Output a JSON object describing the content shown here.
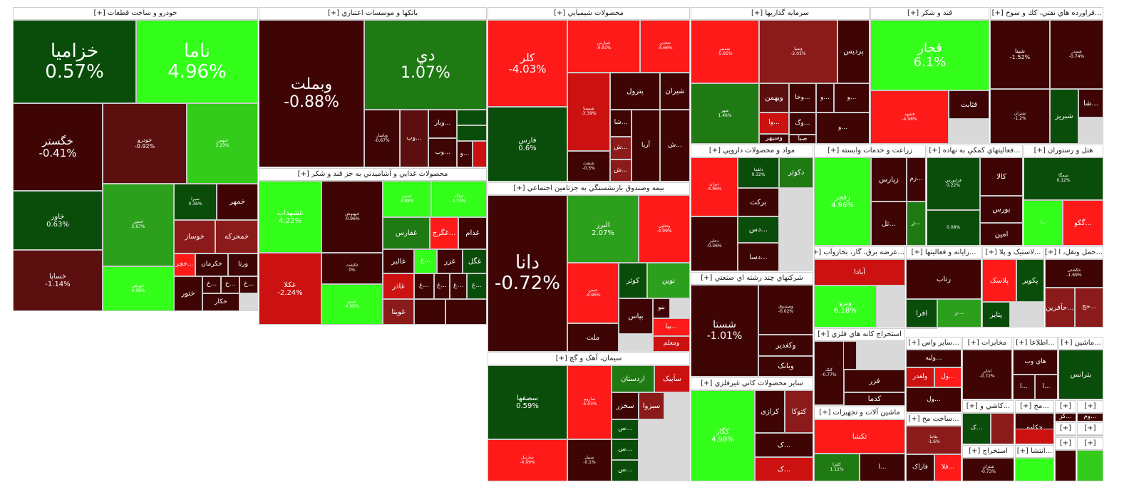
{
  "palette": {
    "r3": "#ff1a1a",
    "r2": "#cc1111",
    "r1": "#8b1a1a",
    "r0": "#5c0f0f",
    "z": "#3f0505",
    "g0": "#0a4d0a",
    "g1": "#1f7a14",
    "g2": "#2ca01c",
    "g3": "#33cc1a",
    "g4": "#33ff1a"
  },
  "sectors": [
    {
      "title": "خودرو و ساخت قطعات [+]",
      "tiles": [
        {
          "s": "خزامیا",
          "p": "0.57%",
          "c": "g0"
        },
        {
          "s": "ناما",
          "p": "4.96%",
          "c": "g4"
        },
        {
          "s": "خگستر",
          "p": "-0.41%",
          "c": "z"
        },
        {
          "s": "خودرو",
          "p": "-0.92%",
          "c": "r0"
        },
        {
          "s": "خبهمن",
          "p": "3.23%",
          "c": "g3"
        },
        {
          "s": "خاور",
          "p": "0.63%",
          "c": "g0"
        },
        {
          "s": "خساپا",
          "p": "-1.14%",
          "c": "r0"
        },
        {
          "s": "ختمپر",
          "p": "2.67%",
          "c": "g2"
        },
        {
          "s": "خلنت",
          "p": "-4.98%",
          "c": "r3"
        },
        {
          "s": "خپویش",
          "p": "4.98%",
          "c": "g4"
        },
        {
          "s": "سیرا",
          "p": "0.36%",
          "c": "g0"
        },
        {
          "s": "خمهر",
          "p": "",
          "c": "z"
        },
        {
          "s": "خوساز",
          "p": "",
          "c": "r1"
        },
        {
          "s": "خمحرکه",
          "p": "",
          "c": "r1"
        },
        {
          "s": "...خچر",
          "p": "",
          "c": "r3"
        },
        {
          "s": "خکرمان",
          "p": "",
          "c": "z"
        },
        {
          "s": "ورنا",
          "p": "",
          "c": "z"
        },
        {
          "s": "ختور",
          "p": "",
          "c": "z"
        },
        {
          "s": "...خ",
          "p": "",
          "c": "z"
        },
        {
          "s": "...خ",
          "p": "",
          "c": "z"
        },
        {
          "s": "...خ",
          "p": "",
          "c": "z"
        },
        {
          "s": "خکار",
          "p": "",
          "c": "z"
        }
      ]
    },
    {
      "title": "بانکها و موسسات اعتباري [+]",
      "tiles": [
        {
          "s": "وبملت",
          "p": "-0.88%",
          "c": "z"
        },
        {
          "s": "دي",
          "p": "1.07%",
          "c": "g1"
        },
        {
          "s": "وپاسار",
          "p": "-0.67%",
          "c": "z"
        },
        {
          "s": "...وب",
          "p": "",
          "c": "r0"
        },
        {
          "s": "...وبار",
          "p": "",
          "c": "z"
        },
        {
          "s": "",
          "p": "",
          "c": "g0"
        },
        {
          "s": "",
          "p": "",
          "c": "g0"
        },
        {
          "s": "...وب",
          "p": "",
          "c": "z"
        },
        {
          "s": "...و",
          "p": "",
          "c": "z"
        },
        {
          "s": "",
          "p": "",
          "c": "r2"
        }
      ]
    },
    {
      "title": "محصولات غذايي و آشاميدني به جز قند و شکر [+]",
      "tiles": [
        {
          "s": "غشهداب",
          "p": "4.22%",
          "c": "g4"
        },
        {
          "s": "غبهنوش",
          "p": "-0.96%",
          "c": "z"
        },
        {
          "s": "غمینو",
          "p": "3.88%",
          "c": "g4"
        },
        {
          "s": "غپاک",
          "p": "4.73%",
          "c": "g4"
        },
        {
          "s": "عکلا",
          "p": "-2.24%",
          "c": "r2"
        },
        {
          "s": "غکشت",
          "p": "0%",
          "c": "z"
        },
        {
          "s": "غفارس",
          "p": "",
          "c": "g1"
        },
        {
          "s": "...غگرج",
          "p": "",
          "c": "r3"
        },
        {
          "s": "غدام",
          "p": "",
          "c": "z"
        },
        {
          "s": "غپینو",
          "p": "4.99%",
          "c": "g4"
        },
        {
          "s": "غالبر",
          "p": "",
          "c": "z"
        },
        {
          "s": "...غ",
          "p": "",
          "c": "g4"
        },
        {
          "s": "غزر",
          "p": "",
          "c": "z"
        },
        {
          "s": "غگل",
          "p": "",
          "c": "g0"
        },
        {
          "s": "غاذر",
          "p": "",
          "c": "r2"
        },
        {
          "s": "...غ",
          "p": "",
          "c": "z"
        },
        {
          "s": "...غ",
          "p": "",
          "c": "z"
        },
        {
          "s": "...غ",
          "p": "",
          "c": "z"
        },
        {
          "s": "...غ",
          "p": "",
          "c": "g0"
        },
        {
          "s": "غویتا",
          "p": "",
          "c": "r1"
        },
        {
          "s": "",
          "p": "",
          "c": "z"
        },
        {
          "s": "",
          "p": "",
          "c": "z"
        }
      ]
    },
    {
      "title": "محصولات شيميايي [+]",
      "tiles": [
        {
          "s": "کلر",
          "p": "-4.03%",
          "c": "r3"
        },
        {
          "s": "شپارس",
          "p": "-4.91%",
          "c": "r3"
        },
        {
          "s": "شغدیر",
          "p": "-4.66%",
          "c": "r3"
        },
        {
          "s": "فارس",
          "p": "0.6%",
          "c": "g0"
        },
        {
          "s": "شسینا",
          "p": "-3.39%",
          "c": "r2"
        },
        {
          "s": "پترول",
          "p": "",
          "c": "z"
        },
        {
          "s": "شیران",
          "p": "",
          "c": "z"
        },
        {
          "s": "...شا",
          "p": "",
          "c": "z"
        },
        {
          "s": "شنفت",
          "p": "-0.3%",
          "c": "z"
        },
        {
          "s": "...ش",
          "p": "",
          "c": "r1"
        },
        {
          "s": "...ش",
          "p": "",
          "c": "r1"
        },
        {
          "s": "آریا",
          "p": "",
          "c": "z"
        },
        {
          "s": "...ش",
          "p": "",
          "c": "z"
        }
      ]
    },
    {
      "title": "بيمه وصندوق بازنشستگي به جزتامين اجتماعي [+]",
      "tiles": [
        {
          "s": "دانا",
          "p": "-0.72%",
          "c": "z"
        },
        {
          "s": "البرز",
          "p": "2.07%",
          "c": "g2"
        },
        {
          "s": "وتعاون",
          "p": "-4.99%",
          "c": "r3"
        },
        {
          "s": "حپمن",
          "p": "-4.96%",
          "c": "r3"
        },
        {
          "s": "کوثر",
          "p": "",
          "c": "g0"
        },
        {
          "s": "نوین",
          "p": "",
          "c": "g2"
        },
        {
          "s": "بپاس",
          "p": "",
          "c": "z"
        },
        {
          "s": "بنو",
          "p": "",
          "c": "z"
        },
        {
          "s": "ملت",
          "p": "",
          "c": "z"
        },
        {
          "s": "...بیا",
          "p": "",
          "c": "r3"
        },
        {
          "s": "ومعلم",
          "p": "",
          "c": "r2"
        }
      ]
    },
    {
      "title": "سيمان، آهک و گچ [+]",
      "tiles": [
        {
          "s": "سصفها",
          "p": "0.59%",
          "c": "g0"
        },
        {
          "s": "ساروم",
          "p": "-5.03%",
          "c": "r3"
        },
        {
          "s": "ساربیل",
          "p": "-4.99%",
          "c": "r3"
        },
        {
          "s": "سبیل",
          "p": "-0.1%",
          "c": "z"
        },
        {
          "s": "اردستان",
          "p": "",
          "c": "g1"
        },
        {
          "s": "سآبیک",
          "p": "",
          "c": "r2"
        },
        {
          "s": "سخزر",
          "p": "",
          "c": "z"
        },
        {
          "s": "سبزوا",
          "p": "",
          "c": "r1"
        },
        {
          "s": "...س",
          "p": "",
          "c": "g0"
        },
        {
          "s": "...س",
          "p": "",
          "c": "g0"
        },
        {
          "s": "...س",
          "p": "",
          "c": "g0"
        }
      ]
    },
    {
      "title": "سرمايه گذاريها [+]",
      "tiles": [
        {
          "s": "سدبیر",
          "p": "-5.85%",
          "c": "r3"
        },
        {
          "s": "وسپا",
          "p": "-2.01%",
          "c": "r1"
        },
        {
          "s": "پردیس",
          "p": "",
          "c": "z"
        },
        {
          "s": "شهر",
          "p": "1.46%",
          "c": "g1"
        },
        {
          "s": "وبهمن",
          "p": "",
          "c": "r0"
        },
        {
          "s": "...وخا",
          "p": "",
          "c": "z"
        },
        {
          "s": "...و",
          "p": "",
          "c": "z"
        },
        {
          "s": "...و",
          "p": "",
          "c": "z"
        },
        {
          "s": "...وگ",
          "p": "",
          "c": "z"
        },
        {
          "s": "...وا",
          "p": "",
          "c": "r2"
        },
        {
          "s": "وسپهر",
          "p": "",
          "c": "z"
        },
        {
          "s": "صبا",
          "p": "",
          "c": "z"
        },
        {
          "s": "...و",
          "p": "",
          "c": "z"
        }
      ]
    },
    {
      "title": "قند و شکر [+]",
      "tiles": [
        {
          "s": "قجار",
          "p": "6.1%",
          "c": "g4"
        },
        {
          "s": "قشهد",
          "p": "-4.98%",
          "c": "r3"
        },
        {
          "s": "قثابت",
          "p": "",
          "c": "z"
        }
      ]
    },
    {
      "title": "...فراورده هاي نفتي، كك و سوخ [+]",
      "tiles": [
        {
          "s": "شپنا",
          "p": "-1.52%",
          "c": "z"
        },
        {
          "s": "شبندر",
          "p": "-0.74%",
          "c": "z"
        },
        {
          "s": "شتران",
          "p": "-1.2%",
          "c": "z"
        },
        {
          "s": "شبریز",
          "p": "",
          "c": "g0"
        },
        {
          "s": "...شا",
          "p": "",
          "c": "z"
        }
      ]
    },
    {
      "title": "مواد و محصولات دارويي [+]",
      "tiles": [
        {
          "s": "دیران",
          "p": "-4.96%",
          "c": "r3"
        },
        {
          "s": "دلقما",
          "p": "0.32%",
          "c": "g0"
        },
        {
          "s": "دکوثر",
          "p": "",
          "c": "g1"
        },
        {
          "s": "برکت",
          "p": "",
          "c": "z"
        },
        {
          "s": "...دس",
          "p": "",
          "c": "g0"
        },
        {
          "s": "دجابر",
          "p": "-0.36%",
          "c": "z"
        },
        {
          "s": "...دسا",
          "p": "",
          "c": "z"
        }
      ]
    },
    {
      "title": "شرکتهاي چند رشته اي صنعتي [+]",
      "tiles": [
        {
          "s": "شستا",
          "p": "-1.01%",
          "c": "z"
        },
        {
          "s": "وصندوق",
          "p": "-0.02%",
          "c": "z"
        },
        {
          "s": "وکغدیر",
          "p": "",
          "c": "z"
        },
        {
          "s": "وبانک",
          "p": "",
          "c": "z"
        }
      ]
    },
    {
      "title": "ساير محصولات کاني غيرفلزي [+]",
      "tiles": [
        {
          "s": "کگاز",
          "p": "4.98%",
          "c": "g4"
        },
        {
          "s": "کرازی",
          "p": "",
          "c": "z"
        },
        {
          "s": "کتوکا",
          "p": "",
          "c": "r1"
        },
        {
          "s": "...ک",
          "p": "",
          "c": "z"
        },
        {
          "s": "...ک",
          "p": "",
          "c": "r2"
        }
      ]
    },
    {
      "title": "زراعت و خدمات وابسته [+]",
      "tiles": [
        {
          "s": "زفجر",
          "p": "4.96%",
          "c": "g4"
        },
        {
          "s": "زپارس",
          "p": "",
          "c": "z"
        },
        {
          "s": "...زم",
          "p": "",
          "c": "z"
        },
        {
          "s": "...تل",
          "p": "",
          "c": "z"
        },
        {
          "s": "...ز",
          "p": "",
          "c": "g1"
        }
      ]
    },
    {
      "title": "...فعاليتهاي کمکي به نهاده [+]",
      "tiles": [
        {
          "s": "فرابورس",
          "p": "0.22%",
          "c": "g0"
        },
        {
          "s": "کالا",
          "p": "",
          "c": "z"
        },
        {
          "s": "بورس",
          "p": "",
          "c": "z"
        },
        {
          "s": "امین",
          "p": "",
          "c": "z"
        },
        {
          "s": "",
          "p": "0.08%",
          "c": "g0"
        }
      ]
    },
    {
      "title": "هتل و رستوران [+]",
      "tiles": [
        {
          "s": "سمگا",
          "p": "0.12%",
          "c": "g0"
        },
        {
          "s": "...گکو",
          "p": "",
          "c": "r3"
        },
        {
          "s": "...ا",
          "p": "",
          "c": "g4"
        }
      ]
    },
    {
      "title": "...عرضه برق، گاز، بخاروآب [+]",
      "tiles": [
        {
          "s": "آبادا",
          "p": "",
          "c": "r2"
        },
        {
          "s": "وبرو",
          "p": "6.18%",
          "c": "g4"
        }
      ]
    },
    {
      "title": "...رايانه و فعاليتها [+]",
      "tiles": [
        {
          "s": "رتاب",
          "p": "",
          "c": "z"
        },
        {
          "s": "افرا",
          "p": "",
          "c": "g0"
        },
        {
          "s": "...ر",
          "p": "",
          "c": "g2"
        },
        {
          "s": "...پی",
          "p": "",
          "c": "z"
        }
      ]
    },
    {
      "title": "...لاستيک و پلا [+]",
      "tiles": [
        {
          "s": "پلاسک",
          "p": "",
          "c": "r3"
        },
        {
          "s": "پکویر",
          "p": "",
          "c": "g0"
        },
        {
          "s": "پتایر",
          "p": "",
          "c": "g0"
        }
      ]
    },
    {
      "title": "...حمل ونقل، ا [+]",
      "tiles": [
        {
          "s": "حکشتی",
          "p": "-1.69%",
          "c": "z"
        },
        {
          "s": "...حآفرین",
          "p": "",
          "c": "r1"
        },
        {
          "s": "...حج",
          "p": "",
          "c": "r1"
        }
      ]
    },
    {
      "title": "استخراج کانه هاي فلزي [+]",
      "tiles": [
        {
          "s": "کچاد",
          "p": "",
          "c": "z"
        },
        {
          "s": "فزر",
          "p": "",
          "c": "z"
        },
        {
          "s": "کدما",
          "p": "",
          "c": "z"
        },
        {
          "s": "کنک",
          "p": "-0.77%",
          "c": "z"
        }
      ]
    },
    {
      "title": "ماشين آلات و تجهيزات [+]",
      "tiles": [
        {
          "s": "تکشا",
          "p": "",
          "c": "r3"
        },
        {
          "s": "کلیزا",
          "p": "1.12%",
          "c": "g1"
        },
        {
          "s": "...ا",
          "p": "",
          "c": "z"
        }
      ]
    },
    {
      "title": "...ساير واس [+]",
      "tiles": [
        {
          "s": "...ولیه",
          "p": "",
          "c": "z"
        },
        {
          "s": "ولغدر",
          "p": "",
          "c": "r2"
        },
        {
          "s": "...ول",
          "p": "",
          "c": "r3"
        },
        {
          "s": "...ول",
          "p": "",
          "c": "z"
        }
      ]
    },
    {
      "title": "...ساخت مح [+]",
      "tiles": [
        {
          "s": "بفاما",
          "p": "-1.6%",
          "c": "r1"
        },
        {
          "s": "فاراک",
          "p": "",
          "c": "z"
        },
        {
          "s": "...فلا",
          "p": "",
          "c": "r3"
        }
      ]
    },
    {
      "title": "مخابرات [+]",
      "tiles": [
        {
          "s": "اخابر",
          "p": "-0.72%",
          "c": "z"
        }
      ]
    },
    {
      "title": "...اطلاعا [+]",
      "tiles": [
        {
          "s": "هاي وب",
          "p": "",
          "c": "z"
        },
        {
          "s": "...ا",
          "p": "",
          "c": "z"
        },
        {
          "s": "...ا",
          "p": "",
          "c": "z"
        }
      ]
    },
    {
      "title": "...ماشين [+]",
      "tiles": [
        {
          "s": "بترانس",
          "p": "",
          "c": "g0"
        }
      ]
    },
    {
      "title": "...کاشي و [+]",
      "tiles": [
        {
          "s": "...ک",
          "p": "",
          "c": "g0"
        },
        {
          "s": "",
          "p": "",
          "c": "r1"
        }
      ]
    },
    {
      "title": "...مح [+]",
      "tiles": [
        {
          "s": "چکاوه",
          "p": "",
          "c": "z"
        },
        {
          "s": "",
          "p": "",
          "c": "r2"
        }
      ]
    },
    {
      "title": "استخراج [+]",
      "tiles": [
        {
          "s": "شتران",
          "p": "-0.73%",
          "c": "z"
        }
      ]
    },
    {
      "title": "...انتشا [+]",
      "tiles": [
        {
          "s": "",
          "p": "",
          "c": "g4"
        }
      ]
    },
    {
      "title": "[+]",
      "tiles": [
        {
          "s": "...کز",
          "p": "",
          "c": "z"
        }
      ]
    },
    {
      "title": "[+]",
      "tiles": [
        {
          "s": "...وم",
          "p": "",
          "c": "z"
        }
      ]
    },
    {
      "title": "[+]",
      "tiles": [
        {
          "s": "",
          "p": "",
          "c": "z"
        }
      ]
    },
    {
      "title": "[+]",
      "tiles": [
        {
          "s": "",
          "p": "",
          "c": "z"
        }
      ]
    },
    {
      "title": "[+]",
      "tiles": [
        {
          "s": "",
          "p": "",
          "c": "z"
        }
      ]
    },
    {
      "title": "[+]",
      "tiles": [
        {
          "s": "",
          "p": "",
          "c": "g3"
        }
      ]
    },
    {
      "title": "[+]",
      "tiles": [
        {
          "s": "",
          "p": "",
          "c": "z"
        }
      ]
    }
  ]
}
